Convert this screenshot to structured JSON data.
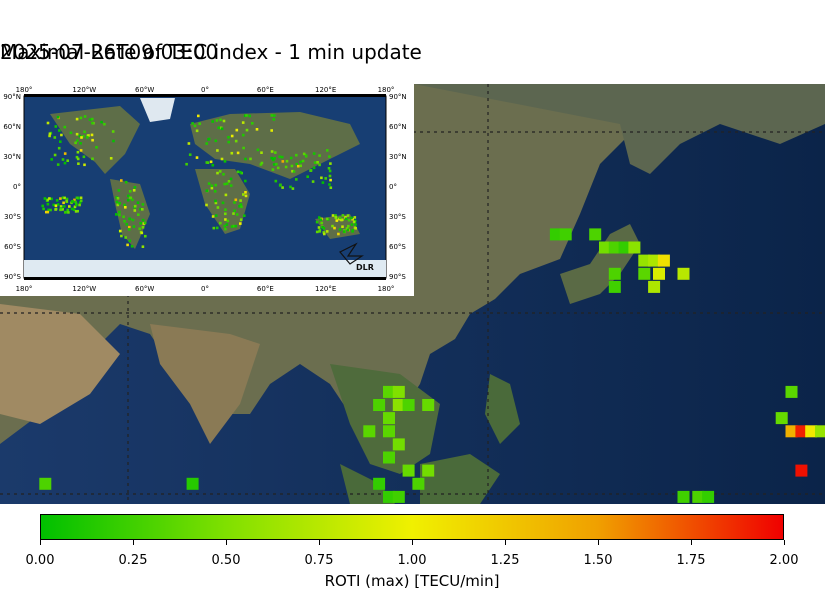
{
  "header": {
    "title": "Maximal Rate of TEC index - 1 min update",
    "timestamp": "2025-07-26T09:03:00"
  },
  "inset": {
    "logo_text": "DLR",
    "lon_ticks": [
      "180°",
      "120°W",
      "60°W",
      "0°",
      "60°E",
      "120°E",
      "180°"
    ],
    "lat_ticks": [
      "90°N",
      "60°N",
      "30°N",
      "0°",
      "30°S",
      "60°S",
      "90°S"
    ]
  },
  "colorbar": {
    "label": "ROTI (max) [TECU/min]",
    "ticks": [
      "0.00",
      "0.25",
      "0.50",
      "0.75",
      "1.00",
      "1.25",
      "1.50",
      "1.75",
      "2.00"
    ],
    "min": 0,
    "max": 2,
    "colors": [
      "#00c000",
      "#80e000",
      "#f0f000",
      "#f0a000",
      "#f00000"
    ]
  },
  "chart_data": {
    "type": "heatmap",
    "title": "Maximal Rate of TEC index - 1 min update",
    "colorbar_label": "ROTI (max) [TECU/min]",
    "zlim": [
      0,
      2
    ],
    "regional_cells": [
      {
        "lon": 134,
        "lat": 38,
        "roti": 0.2
      },
      {
        "lon": 136,
        "lat": 38,
        "roti": 0.25
      },
      {
        "lon": 142,
        "lat": 38,
        "roti": 0.3
      },
      {
        "lon": 144,
        "lat": 36,
        "roti": 0.45
      },
      {
        "lon": 146,
        "lat": 36,
        "roti": 0.3
      },
      {
        "lon": 148,
        "lat": 36,
        "roti": 0.2
      },
      {
        "lon": 150,
        "lat": 36,
        "roti": 0.55
      },
      {
        "lon": 152,
        "lat": 34,
        "roti": 0.6
      },
      {
        "lon": 154,
        "lat": 34,
        "roti": 0.7
      },
      {
        "lon": 156,
        "lat": 34,
        "roti": 1.1
      },
      {
        "lon": 155,
        "lat": 32,
        "roti": 0.9
      },
      {
        "lon": 152,
        "lat": 32,
        "roti": 0.35
      },
      {
        "lon": 146,
        "lat": 32,
        "roti": 0.3
      },
      {
        "lon": 160,
        "lat": 32,
        "roti": 0.75
      },
      {
        "lon": 146,
        "lat": 30,
        "roti": 0.25
      },
      {
        "lon": 154,
        "lat": 30,
        "roti": 0.7
      },
      {
        "lon": 100,
        "lat": 14,
        "roti": 0.35
      },
      {
        "lon": 102,
        "lat": 14,
        "roti": 0.5
      },
      {
        "lon": 98,
        "lat": 12,
        "roti": 0.3
      },
      {
        "lon": 102,
        "lat": 12,
        "roti": 0.55
      },
      {
        "lon": 104,
        "lat": 12,
        "roti": 0.3
      },
      {
        "lon": 108,
        "lat": 12,
        "roti": 0.4
      },
      {
        "lon": 100,
        "lat": 10,
        "roti": 0.4
      },
      {
        "lon": 96,
        "lat": 8,
        "roti": 0.35
      },
      {
        "lon": 100,
        "lat": 8,
        "roti": 0.35
      },
      {
        "lon": 102,
        "lat": 6,
        "roti": 0.45
      },
      {
        "lon": 100,
        "lat": 4,
        "roti": 0.3
      },
      {
        "lon": 104,
        "lat": 2,
        "roti": 0.4
      },
      {
        "lon": 108,
        "lat": 2,
        "roti": 0.45
      },
      {
        "lon": 106,
        "lat": 0,
        "roti": 0.3
      },
      {
        "lon": 98,
        "lat": 0,
        "roti": 0.2
      },
      {
        "lon": 100,
        "lat": -2,
        "roti": 0.2
      },
      {
        "lon": 102,
        "lat": -2,
        "roti": 0.25
      },
      {
        "lon": 30,
        "lat": 0,
        "roti": 0.3
      },
      {
        "lon": 60,
        "lat": 0,
        "roti": 0.15
      },
      {
        "lon": 160,
        "lat": -2,
        "roti": 0.25
      },
      {
        "lon": 163,
        "lat": -2,
        "roti": 0.3
      },
      {
        "lon": 165,
        "lat": -2,
        "roti": 0.2
      },
      {
        "lon": 182,
        "lat": 14,
        "roti": 0.35
      },
      {
        "lon": 180,
        "lat": 10,
        "roti": 0.4
      },
      {
        "lon": 182,
        "lat": 8,
        "roti": 1.4
      },
      {
        "lon": 184,
        "lat": 8,
        "roti": 1.9
      },
      {
        "lon": 186,
        "lat": 8,
        "roti": 1.05
      },
      {
        "lon": 188,
        "lat": 8,
        "roti": 0.6
      },
      {
        "lon": 184,
        "lat": 2,
        "roti": 1.95
      }
    ]
  }
}
